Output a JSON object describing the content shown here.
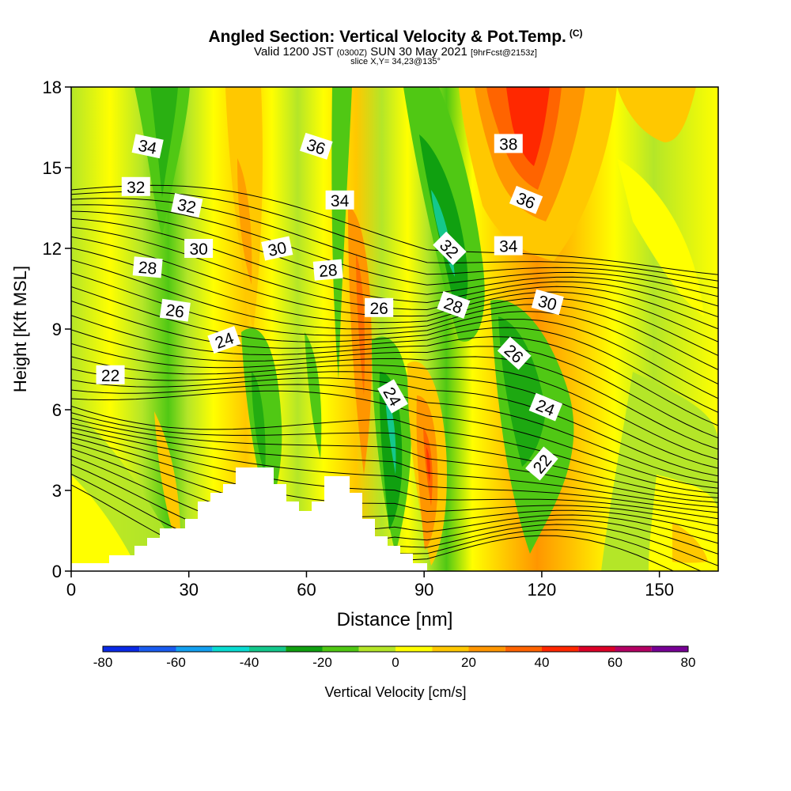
{
  "header": {
    "title": "Angled Section: Vertical Velocity & Pot.Temp.",
    "title_mark": "(C)",
    "valid_prefix": "Valid 1200 JST",
    "valid_utc": "(0300Z)",
    "valid_date": "SUN 30 May 2021",
    "valid_fcst": "[9hrFcst@2153z]",
    "slice": "slice X,Y= 34,23@135°"
  },
  "chart_data": {
    "type": "heatmap",
    "xlabel": "Distance [nm]",
    "ylabel": "Height [Kft MSL]",
    "xlim": [
      0,
      165
    ],
    "ylim": [
      0,
      18
    ],
    "x_ticks": [
      0,
      30,
      60,
      90,
      120,
      150
    ],
    "y_ticks": [
      0,
      3,
      6,
      9,
      12,
      15,
      18
    ],
    "colorbar": {
      "label": "Vertical Velocity [cm/s]",
      "ticks": [
        -80,
        -60,
        -40,
        -20,
        0,
        20,
        40,
        60,
        80
      ],
      "bins": [
        -80,
        -70,
        -60,
        -50,
        -40,
        -30,
        -20,
        -10,
        0,
        10,
        20,
        30,
        40,
        50,
        60,
        70,
        80
      ],
      "colors": [
        "#0a2ae6",
        "#1a5cf0",
        "#14a0f0",
        "#0adcd2",
        "#14c88c",
        "#10a010",
        "#50c814",
        "#b4e628",
        "#ffff00",
        "#ffc800",
        "#ff9600",
        "#ff6400",
        "#ff2800",
        "#dc0028",
        "#b40064",
        "#780096"
      ]
    },
    "theta_contour_labels": [
      {
        "text": "34",
        "x": 19.5,
        "y": 15.8,
        "rot": 12
      },
      {
        "text": "32",
        "x": 16.5,
        "y": 14.3,
        "rot": 0
      },
      {
        "text": "32",
        "x": 29.5,
        "y": 13.6,
        "rot": 12
      },
      {
        "text": "30",
        "x": 32.5,
        "y": 12.0,
        "rot": 0
      },
      {
        "text": "28",
        "x": 19.5,
        "y": 11.3,
        "rot": 5
      },
      {
        "text": "26",
        "x": 26.5,
        "y": 9.7,
        "rot": 8
      },
      {
        "text": "24",
        "x": 39.0,
        "y": 8.6,
        "rot": -20
      },
      {
        "text": "22",
        "x": 10.0,
        "y": 7.3,
        "rot": 0
      },
      {
        "text": "36",
        "x": 62.5,
        "y": 15.8,
        "rot": 18
      },
      {
        "text": "34",
        "x": 68.5,
        "y": 13.8,
        "rot": 0
      },
      {
        "text": "30",
        "x": 52.5,
        "y": 12.0,
        "rot": -12
      },
      {
        "text": "28",
        "x": 65.5,
        "y": 11.2,
        "rot": -5
      },
      {
        "text": "26",
        "x": 78.5,
        "y": 9.8,
        "rot": 0
      },
      {
        "text": "24",
        "x": 82.0,
        "y": 6.5,
        "rot": 60
      },
      {
        "text": "38",
        "x": 111.5,
        "y": 15.9,
        "rot": 0
      },
      {
        "text": "36",
        "x": 116.0,
        "y": 13.8,
        "rot": 22
      },
      {
        "text": "32",
        "x": 96.5,
        "y": 12.0,
        "rot": 45
      },
      {
        "text": "34",
        "x": 111.5,
        "y": 12.1,
        "rot": 0
      },
      {
        "text": "28",
        "x": 97.5,
        "y": 9.9,
        "rot": 20
      },
      {
        "text": "30",
        "x": 121.5,
        "y": 10.0,
        "rot": 15
      },
      {
        "text": "26",
        "x": 113.0,
        "y": 8.1,
        "rot": 42
      },
      {
        "text": "24",
        "x": 121.0,
        "y": 6.1,
        "rot": 22
      },
      {
        "text": "22",
        "x": 120.0,
        "y": 4.0,
        "rot": -50
      }
    ]
  }
}
